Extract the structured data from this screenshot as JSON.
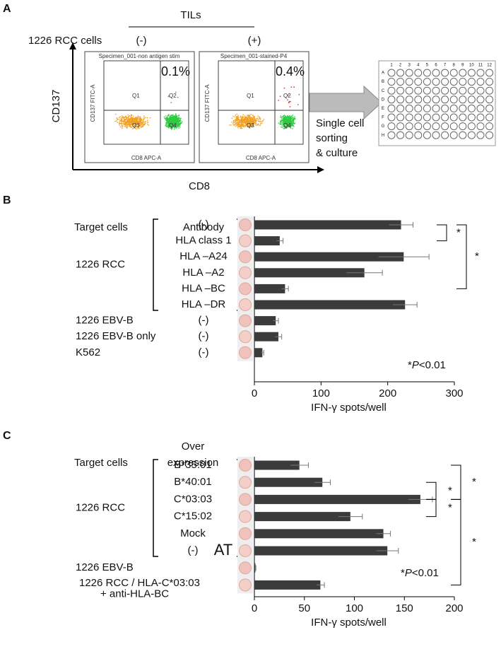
{
  "panel_a": {
    "label": "A",
    "tils": "TILs",
    "rcc_cells": "1226 RCC cells",
    "neg": "(-)",
    "pos": "(+)",
    "y_label": "CD137",
    "x_label": "CD8",
    "plots": [
      {
        "title": "Specimen_001-non antigen stim",
        "percent": "0.1%"
      },
      {
        "title": "Specimen_001-stained-P4",
        "percent": "0.4%"
      }
    ],
    "quadrants": [
      "Q1",
      "Q2",
      "Q3",
      "Q4"
    ],
    "plot_y_label": "CD137 FITC-A",
    "plot_x_label": "CD8 APC-A",
    "arrow_text": [
      "Single cell",
      "sorting",
      "& culture"
    ],
    "plate_columns": [
      "1",
      "2",
      "3",
      "4",
      "5",
      "6",
      "7",
      "8",
      "9",
      "10",
      "11",
      "12"
    ],
    "plate_rows": [
      "A",
      "B",
      "C",
      "D",
      "E",
      "F",
      "G",
      "H"
    ]
  },
  "chart_data": [
    {
      "type": "hbar",
      "label": "B",
      "header_target": "Target cells",
      "header_condition": [
        "Antibody"
      ],
      "targets": [
        "1226 RCC",
        "1226 EBV-B",
        "1226 EBV-B only",
        "K562"
      ],
      "categories": [
        "(-)",
        "HLA class 1",
        "HLA –A24",
        "HLA –A2",
        "HLA –BC",
        "HLA –DR",
        "(-)",
        "(-)",
        "(-)"
      ],
      "values": [
        220,
        38,
        224,
        165,
        46,
        226,
        32,
        36,
        12
      ],
      "errors": [
        18,
        5,
        38,
        27,
        5,
        18,
        4,
        5,
        2
      ],
      "color": "#3b3b3b",
      "xlim": [
        0,
        300
      ],
      "xticks": [
        0,
        100,
        200,
        300
      ],
      "x_label": "IFN-γ spots/well",
      "significance": [
        "*",
        "*"
      ],
      "note": {
        "star": "*",
        "p": "P",
        "rest": "<0.01"
      }
    },
    {
      "type": "hbar",
      "label": "C",
      "header_target": "Target cells",
      "header_condition": [
        "Over",
        "expression"
      ],
      "targets": [
        "1226 RCC",
        "1226 EBV-B",
        "1226 RCC / HLA-C*03:03",
        "+ anti-HLA-BC"
      ],
      "categories": [
        "B*35:01",
        "B*40:01",
        "C*03:03",
        "C*15:02",
        "Mock",
        "(-)",
        null,
        null
      ],
      "values": [
        45,
        68,
        166,
        96,
        129,
        133,
        1,
        66
      ],
      "errors": [
        9,
        8,
        12,
        12,
        7,
        11,
        0.5,
        4
      ],
      "color": "#3b3b3b",
      "xlim": [
        0,
        200
      ],
      "xticks": [
        0,
        50,
        100,
        150,
        200
      ],
      "x_label": "IFN-γ spots/well",
      "significance": [
        "*",
        "*",
        "*",
        "*"
      ],
      "note": {
        "star": "*",
        "p": "P",
        "rest": "<0.01"
      },
      "extra_text": "AT"
    }
  ]
}
